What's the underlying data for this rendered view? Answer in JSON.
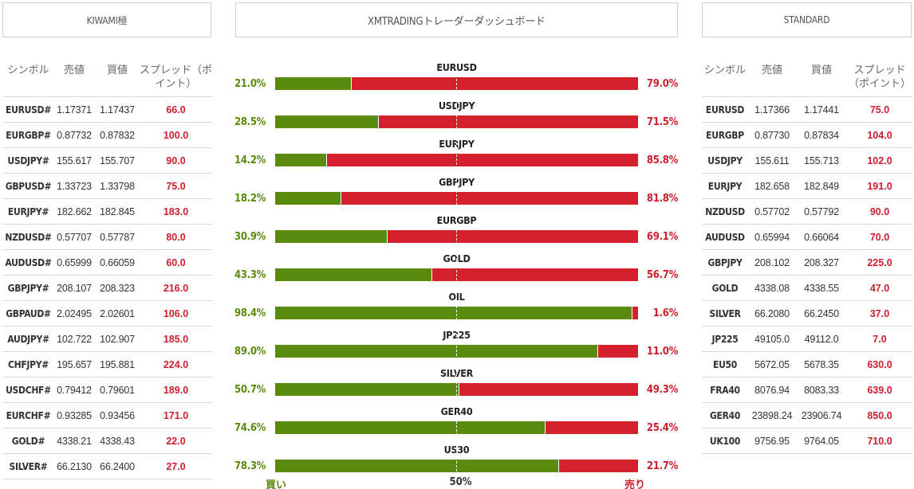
{
  "headers": {
    "left": "KIWAMI極",
    "center": "XMTRADINGトレーダーダッシュボード",
    "right": "STANDARD"
  },
  "columns": {
    "symbol": "シンボル",
    "bid": "売値",
    "ask": "買値",
    "spread": "スプレッド（ポイント）"
  },
  "kiwami_rows": [
    {
      "symbol": "EURUSD#",
      "bid": "1.17371",
      "ask": "1.17437",
      "spread": "66.0"
    },
    {
      "symbol": "EURGBP#",
      "bid": "0.87732",
      "ask": "0.87832",
      "spread": "100.0"
    },
    {
      "symbol": "USDJPY#",
      "bid": "155.617",
      "ask": "155.707",
      "spread": "90.0"
    },
    {
      "symbol": "GBPUSD#",
      "bid": "1.33723",
      "ask": "1.33798",
      "spread": "75.0"
    },
    {
      "symbol": "EURJPY#",
      "bid": "182.662",
      "ask": "182.845",
      "spread": "183.0"
    },
    {
      "symbol": "NZDUSD#",
      "bid": "0.57707",
      "ask": "0.57787",
      "spread": "80.0"
    },
    {
      "symbol": "AUDUSD#",
      "bid": "0.65999",
      "ask": "0.66059",
      "spread": "60.0"
    },
    {
      "symbol": "GBPJPY#",
      "bid": "208.107",
      "ask": "208.323",
      "spread": "216.0"
    },
    {
      "symbol": "GBPAUD#",
      "bid": "2.02495",
      "ask": "2.02601",
      "spread": "106.0"
    },
    {
      "symbol": "AUDJPY#",
      "bid": "102.722",
      "ask": "102.907",
      "spread": "185.0"
    },
    {
      "symbol": "CHFJPY#",
      "bid": "195.657",
      "ask": "195.881",
      "spread": "224.0"
    },
    {
      "symbol": "USDCHF#",
      "bid": "0.79412",
      "ask": "0.79601",
      "spread": "189.0"
    },
    {
      "symbol": "EURCHF#",
      "bid": "0.93285",
      "ask": "0.93456",
      "spread": "171.0"
    },
    {
      "symbol": "GOLD#",
      "bid": "4338.21",
      "ask": "4338.43",
      "spread": "22.0"
    },
    {
      "symbol": "SILVER#",
      "bid": "66.2130",
      "ask": "66.2400",
      "spread": "27.0"
    }
  ],
  "standard_rows": [
    {
      "symbol": "EURUSD",
      "bid": "1.17366",
      "ask": "1.17441",
      "spread": "75.0"
    },
    {
      "symbol": "EURGBP",
      "bid": "0.87730",
      "ask": "0.87834",
      "spread": "104.0"
    },
    {
      "symbol": "USDJPY",
      "bid": "155.611",
      "ask": "155.713",
      "spread": "102.0"
    },
    {
      "symbol": "EURJPY",
      "bid": "182.658",
      "ask": "182.849",
      "spread": "191.0"
    },
    {
      "symbol": "NZDUSD",
      "bid": "0.57702",
      "ask": "0.57792",
      "spread": "90.0"
    },
    {
      "symbol": "AUDUSD",
      "bid": "0.65994",
      "ask": "0.66064",
      "spread": "70.0"
    },
    {
      "symbol": "GBPJPY",
      "bid": "208.102",
      "ask": "208.327",
      "spread": "225.0"
    },
    {
      "symbol": "GOLD",
      "bid": "4338.08",
      "ask": "4338.55",
      "spread": "47.0"
    },
    {
      "symbol": "SILVER",
      "bid": "66.2080",
      "ask": "66.2450",
      "spread": "37.0"
    },
    {
      "symbol": "JP225",
      "bid": "49105.0",
      "ask": "49112.0",
      "spread": "7.0"
    },
    {
      "symbol": "EU50",
      "bid": "5672.05",
      "ask": "5678.35",
      "spread": "630.0"
    },
    {
      "symbol": "FRA40",
      "bid": "8076.94",
      "ask": "8083.33",
      "spread": "639.0"
    },
    {
      "symbol": "GER40",
      "bid": "23898.24",
      "ask": "23906.74",
      "spread": "850.0"
    },
    {
      "symbol": "UK100",
      "bid": "9756.95",
      "ask": "9764.05",
      "spread": "710.0"
    }
  ],
  "sentiment": [
    {
      "symbol": "EURUSD",
      "buy": 21.0,
      "sell": 79.0,
      "buy_label": "21.0%",
      "sell_label": "79.0%"
    },
    {
      "symbol": "USDJPY",
      "buy": 28.5,
      "sell": 71.5,
      "buy_label": "28.5%",
      "sell_label": "71.5%"
    },
    {
      "symbol": "EURJPY",
      "buy": 14.2,
      "sell": 85.8,
      "buy_label": "14.2%",
      "sell_label": "85.8%"
    },
    {
      "symbol": "GBPJPY",
      "buy": 18.2,
      "sell": 81.8,
      "buy_label": "18.2%",
      "sell_label": "81.8%"
    },
    {
      "symbol": "EURGBP",
      "buy": 30.9,
      "sell": 69.1,
      "buy_label": "30.9%",
      "sell_label": "69.1%"
    },
    {
      "symbol": "GOLD",
      "buy": 43.3,
      "sell": 56.7,
      "buy_label": "43.3%",
      "sell_label": "56.7%"
    },
    {
      "symbol": "OIL",
      "buy": 98.4,
      "sell": 1.6,
      "buy_label": "98.4%",
      "sell_label": "1.6%"
    },
    {
      "symbol": "JP225",
      "buy": 89.0,
      "sell": 11.0,
      "buy_label": "89.0%",
      "sell_label": "11.0%"
    },
    {
      "symbol": "SILVER",
      "buy": 50.7,
      "sell": 49.3,
      "buy_label": "50.7%",
      "sell_label": "49.3%"
    },
    {
      "symbol": "GER40",
      "buy": 74.6,
      "sell": 25.4,
      "buy_label": "74.6%",
      "sell_label": "25.4%"
    },
    {
      "symbol": "US30",
      "buy": 78.3,
      "sell": 21.7,
      "buy_label": "78.3%",
      "sell_label": "21.7%"
    }
  ],
  "footer": {
    "buy": "買い",
    "mid": "50%",
    "sell": "売り"
  },
  "colors": {
    "buy": "#5a8a10",
    "sell": "#d3202b"
  }
}
